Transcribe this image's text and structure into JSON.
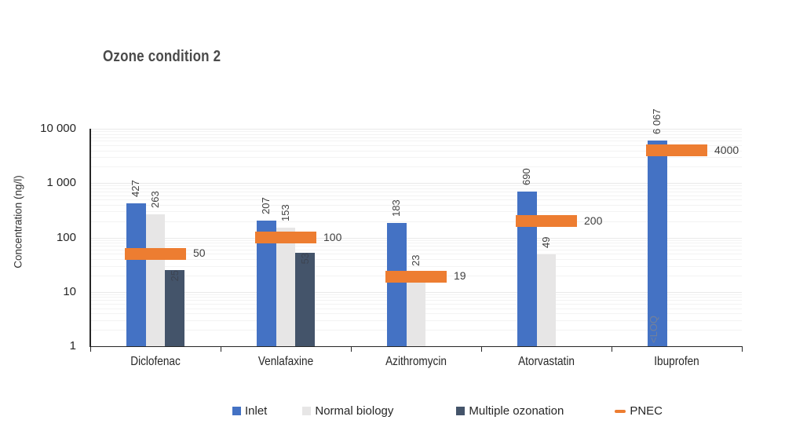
{
  "chart_data": {
    "type": "bar",
    "title": "Ozone condition 2",
    "ylabel": "Concentration (ng/l)",
    "log_scale": true,
    "ylim": [
      1,
      10000
    ],
    "ytick_values": [
      10000,
      1000,
      100,
      10,
      1
    ],
    "ytick_labels": [
      "10 000",
      "1 000",
      "100",
      "10",
      "1"
    ],
    "grid": "horizontal-log-minor",
    "legend_position": "bottom",
    "categories": [
      "Diclofenac",
      "Venlafaxine",
      "Azithromycin",
      "Atorvastatin",
      "Ibuprofen"
    ],
    "series": [
      {
        "name": "Inlet",
        "color": "#4472C4",
        "values": [
          427,
          207,
          183,
          690,
          6067
        ],
        "labels": [
          "427",
          "207",
          "183",
          "690",
          "6 067"
        ],
        "label_placement": [
          "above",
          "above",
          "above",
          "above",
          "above"
        ]
      },
      {
        "name": "Normal biology",
        "color": "#E7E6E6",
        "values": [
          263,
          153,
          23,
          49,
          null
        ],
        "labels": [
          "263",
          "153",
          "23",
          "49",
          "<LOQ"
        ],
        "label_placement": [
          "above",
          "above",
          "above",
          "above",
          "base"
        ]
      },
      {
        "name": "Multiple ozonation",
        "color": "#44546A",
        "values": [
          25,
          53,
          null,
          null,
          null
        ],
        "labels": [
          "25",
          "53",
          null,
          null,
          null
        ],
        "label_placement": [
          "inside",
          "inside",
          null,
          null,
          null
        ]
      }
    ],
    "pnec_series": {
      "name": "PNEC",
      "marker": "dash",
      "color": "#ED7D31",
      "values": [
        50,
        100,
        19,
        200,
        4000
      ],
      "labels": [
        "50",
        "100",
        "19",
        "200",
        "4000"
      ]
    },
    "legend": [
      "Inlet",
      "Normal biology",
      "Multiple ozonation",
      "PNEC"
    ]
  }
}
